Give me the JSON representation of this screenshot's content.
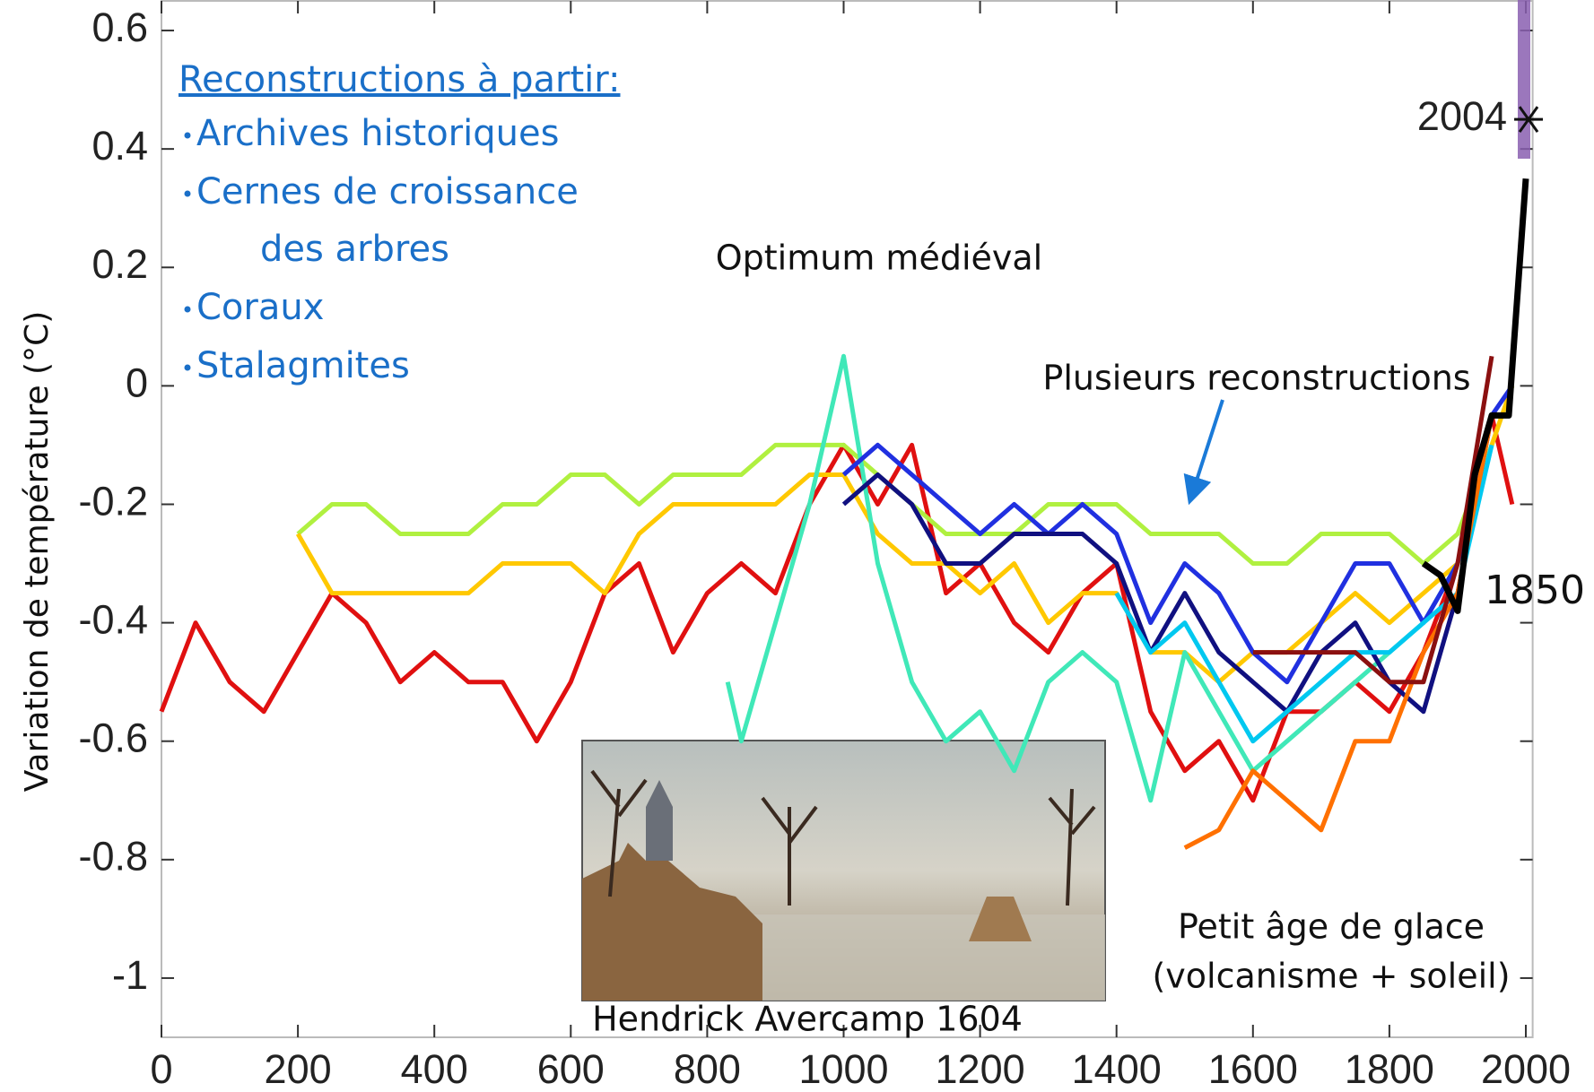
{
  "chart_data": {
    "type": "line",
    "ylabel": "Variation de température (°C)",
    "xlim": [
      0,
      2010
    ],
    "ylim": [
      -1.1,
      0.65
    ],
    "xticks": [
      0,
      200,
      400,
      600,
      800,
      1000,
      1200,
      1400,
      1600,
      1800,
      2000
    ],
    "yticks": [
      0.6,
      0.4,
      0.2,
      0,
      -0.2,
      -0.4,
      -0.6,
      -0.8,
      -1
    ],
    "grid": false,
    "series": [
      {
        "color": "#e01010",
        "x": [
          0,
          50,
          100,
          150,
          200,
          250,
          300,
          350,
          400,
          450,
          500,
          550,
          600,
          650,
          700,
          750,
          800,
          850,
          900,
          950,
          1000,
          1050,
          1100,
          1150,
          1200,
          1250,
          1300,
          1350,
          1400,
          1450,
          1500,
          1550,
          1600,
          1650,
          1700,
          1750,
          1800,
          1850,
          1900,
          1950,
          1980
        ],
        "values": [
          -0.55,
          -0.4,
          -0.5,
          -0.55,
          -0.45,
          -0.35,
          -0.4,
          -0.5,
          -0.45,
          -0.5,
          -0.5,
          -0.6,
          -0.5,
          -0.35,
          -0.3,
          -0.45,
          -0.35,
          -0.3,
          -0.35,
          -0.2,
          -0.1,
          -0.2,
          -0.1,
          -0.35,
          -0.3,
          -0.4,
          -0.45,
          -0.35,
          -0.3,
          -0.55,
          -0.65,
          -0.6,
          -0.7,
          -0.55,
          -0.55,
          -0.5,
          -0.55,
          -0.45,
          -0.3,
          -0.05,
          -0.2
        ]
      },
      {
        "color": "#b0f040",
        "x": [
          200,
          250,
          300,
          350,
          400,
          450,
          500,
          550,
          600,
          650,
          700,
          750,
          800,
          850,
          900,
          950,
          1000,
          1050,
          1100,
          1150,
          1200,
          1250,
          1300,
          1350,
          1400,
          1450,
          1500,
          1550,
          1600,
          1650,
          1700,
          1750,
          1800,
          1850,
          1900,
          1950,
          1980
        ],
        "values": [
          -0.25,
          -0.2,
          -0.2,
          -0.25,
          -0.25,
          -0.25,
          -0.2,
          -0.2,
          -0.15,
          -0.15,
          -0.2,
          -0.15,
          -0.15,
          -0.15,
          -0.1,
          -0.1,
          -0.1,
          -0.15,
          -0.2,
          -0.25,
          -0.25,
          -0.25,
          -0.2,
          -0.2,
          -0.2,
          -0.25,
          -0.25,
          -0.25,
          -0.3,
          -0.3,
          -0.25,
          -0.25,
          -0.25,
          -0.3,
          -0.25,
          -0.1,
          0
        ]
      },
      {
        "color": "#ffc800",
        "x": [
          200,
          250,
          300,
          350,
          400,
          450,
          500,
          550,
          600,
          650,
          700,
          750,
          800,
          850,
          900,
          950,
          1000,
          1050,
          1100,
          1150,
          1200,
          1250,
          1300,
          1350,
          1400,
          1450,
          1500,
          1550,
          1600,
          1650,
          1700,
          1750,
          1800,
          1850,
          1900,
          1950,
          1980
        ],
        "values": [
          -0.25,
          -0.35,
          -0.35,
          -0.35,
          -0.35,
          -0.35,
          -0.3,
          -0.3,
          -0.3,
          -0.35,
          -0.25,
          -0.2,
          -0.2,
          -0.2,
          -0.2,
          -0.15,
          -0.15,
          -0.25,
          -0.3,
          -0.3,
          -0.35,
          -0.3,
          -0.4,
          -0.35,
          -0.35,
          -0.45,
          -0.45,
          -0.5,
          -0.45,
          -0.45,
          -0.4,
          -0.35,
          -0.4,
          -0.35,
          -0.3,
          -0.1,
          0
        ]
      },
      {
        "color": "#40e8b8",
        "x": [
          830,
          850,
          900,
          950,
          1000,
          1050,
          1100,
          1150,
          1200,
          1250,
          1300,
          1350,
          1400,
          1450,
          1500,
          1550,
          1600,
          1650,
          1700,
          1750,
          1800,
          1850,
          1900,
          1950
        ],
        "values": [
          -0.5,
          -0.6,
          -0.4,
          -0.2,
          0.05,
          -0.3,
          -0.5,
          -0.6,
          -0.55,
          -0.65,
          -0.5,
          -0.45,
          -0.5,
          -0.7,
          -0.45,
          -0.55,
          -0.65,
          -0.6,
          -0.55,
          -0.5,
          -0.45,
          -0.4,
          -0.3,
          -0.1
        ]
      },
      {
        "color": "#2030e0",
        "x": [
          1000,
          1050,
          1100,
          1150,
          1200,
          1250,
          1300,
          1350,
          1400,
          1450,
          1500,
          1550,
          1600,
          1650,
          1700,
          1750,
          1800,
          1850,
          1900,
          1950,
          1980
        ],
        "values": [
          -0.15,
          -0.1,
          -0.15,
          -0.2,
          -0.25,
          -0.2,
          -0.25,
          -0.2,
          -0.25,
          -0.4,
          -0.3,
          -0.35,
          -0.45,
          -0.5,
          -0.4,
          -0.3,
          -0.3,
          -0.4,
          -0.3,
          -0.05,
          0
        ]
      },
      {
        "color": "#101080",
        "x": [
          1000,
          1050,
          1100,
          1150,
          1200,
          1250,
          1300,
          1350,
          1400,
          1450,
          1500,
          1550,
          1600,
          1650,
          1700,
          1750,
          1800,
          1850,
          1900,
          1950
        ],
        "values": [
          -0.2,
          -0.15,
          -0.2,
          -0.3,
          -0.3,
          -0.25,
          -0.25,
          -0.25,
          -0.3,
          -0.45,
          -0.35,
          -0.45,
          -0.5,
          -0.55,
          -0.45,
          -0.4,
          -0.5,
          -0.55,
          -0.35,
          -0.05
        ]
      },
      {
        "color": "#00c8f0",
        "x": [
          1400,
          1450,
          1500,
          1550,
          1600,
          1650,
          1700,
          1750,
          1800,
          1850,
          1900,
          1950
        ],
        "values": [
          -0.35,
          -0.45,
          -0.4,
          -0.5,
          -0.6,
          -0.55,
          -0.5,
          -0.45,
          -0.45,
          -0.4,
          -0.35,
          -0.1
        ]
      },
      {
        "color": "#ff7000",
        "x": [
          1500,
          1550,
          1600,
          1650,
          1700,
          1750,
          1800,
          1850,
          1900,
          1950
        ],
        "values": [
          -0.78,
          -0.75,
          -0.65,
          -0.7,
          -0.75,
          -0.6,
          -0.6,
          -0.45,
          -0.35,
          -0.05
        ]
      },
      {
        "color": "#8b1010",
        "x": [
          1600,
          1650,
          1700,
          1750,
          1800,
          1850,
          1900,
          1950
        ],
        "values": [
          -0.45,
          -0.45,
          -0.45,
          -0.45,
          -0.5,
          -0.5,
          -0.3,
          0.05
        ]
      },
      {
        "color": "#000000",
        "x": [
          1850,
          1875,
          1900,
          1925,
          1950,
          1975,
          2000
        ],
        "values": [
          -0.3,
          -0.32,
          -0.38,
          -0.15,
          -0.05,
          -0.05,
          0.35
        ]
      }
    ],
    "marker": {
      "x": 2004,
      "value": 0.45,
      "label": "2004"
    },
    "legend_box": {
      "heading": "Reconstructions à partir:",
      "items": [
        [
          "Archives historiques"
        ],
        [
          "Cernes de croissance",
          "des arbres"
        ],
        [
          "Coraux"
        ],
        [
          "Stalagmites"
        ]
      ]
    },
    "annotations": [
      "Optimum médiéval",
      "Plusieurs reconstructions",
      "1850",
      [
        "Petit âge de glace",
        "(volcanisme + soleil)"
      ],
      "Hendrick Avercamp 1604"
    ]
  }
}
